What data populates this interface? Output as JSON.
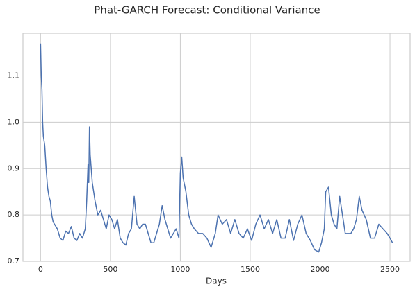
{
  "chart_data": {
    "type": "line",
    "title": "Phat-GARCH Forecast: Conditional Variance",
    "xlabel": "Days",
    "xlim": [
      -126,
      2644
    ],
    "ylim": [
      0.7,
      1.192
    ],
    "xticks": [
      0,
      500,
      1000,
      1500,
      2000,
      2500
    ],
    "yticks": [
      0.7,
      0.8,
      0.9,
      {
        "value": 1,
        "label": "1.0"
      },
      1.1
    ],
    "grid": true,
    "series": [
      {
        "color": "#4c72b0",
        "x": [
          0,
          5,
          10,
          15,
          20,
          30,
          40,
          50,
          60,
          70,
          80,
          90,
          100,
          120,
          140,
          160,
          180,
          200,
          220,
          240,
          260,
          280,
          300,
          320,
          330,
          340,
          345,
          350,
          355,
          370,
          390,
          410,
          430,
          450,
          470,
          490,
          510,
          530,
          550,
          570,
          590,
          610,
          630,
          650,
          670,
          690,
          710,
          730,
          750,
          770,
          790,
          810,
          830,
          850,
          870,
          890,
          910,
          930,
          950,
          970,
          990,
          1000,
          1010,
          1020,
          1040,
          1060,
          1080,
          1100,
          1130,
          1160,
          1190,
          1220,
          1250,
          1270,
          1300,
          1330,
          1360,
          1390,
          1420,
          1450,
          1480,
          1510,
          1540,
          1570,
          1600,
          1630,
          1660,
          1690,
          1720,
          1750,
          1780,
          1810,
          1840,
          1870,
          1900,
          1930,
          1960,
          1990,
          2010,
          2030,
          2040,
          2060,
          2080,
          2100,
          2120,
          2140,
          2160,
          2180,
          2200,
          2220,
          2240,
          2260,
          2280,
          2300,
          2330,
          2360,
          2390,
          2420,
          2450,
          2480,
          2500,
          2518
        ],
        "values": [
          1.17,
          1.1,
          1.07,
          1.0,
          0.97,
          0.95,
          0.9,
          0.86,
          0.84,
          0.83,
          0.8,
          0.785,
          0.78,
          0.77,
          0.75,
          0.745,
          0.765,
          0.76,
          0.775,
          0.75,
          0.745,
          0.76,
          0.75,
          0.77,
          0.83,
          0.91,
          0.87,
          0.99,
          0.93,
          0.87,
          0.83,
          0.8,
          0.81,
          0.79,
          0.77,
          0.8,
          0.79,
          0.77,
          0.79,
          0.75,
          0.74,
          0.735,
          0.76,
          0.77,
          0.84,
          0.78,
          0.77,
          0.78,
          0.78,
          0.76,
          0.74,
          0.74,
          0.76,
          0.78,
          0.82,
          0.79,
          0.77,
          0.75,
          0.76,
          0.77,
          0.75,
          0.89,
          0.925,
          0.88,
          0.85,
          0.8,
          0.78,
          0.77,
          0.76,
          0.76,
          0.75,
          0.73,
          0.76,
          0.8,
          0.78,
          0.79,
          0.76,
          0.79,
          0.76,
          0.75,
          0.77,
          0.745,
          0.78,
          0.8,
          0.77,
          0.79,
          0.76,
          0.79,
          0.75,
          0.75,
          0.79,
          0.745,
          0.78,
          0.8,
          0.76,
          0.745,
          0.725,
          0.72,
          0.74,
          0.77,
          0.85,
          0.86,
          0.8,
          0.78,
          0.77,
          0.84,
          0.8,
          0.76,
          0.76,
          0.76,
          0.77,
          0.79,
          0.84,
          0.81,
          0.79,
          0.75,
          0.75,
          0.78,
          0.77,
          0.76,
          0.75,
          0.74
        ]
      }
    ]
  }
}
